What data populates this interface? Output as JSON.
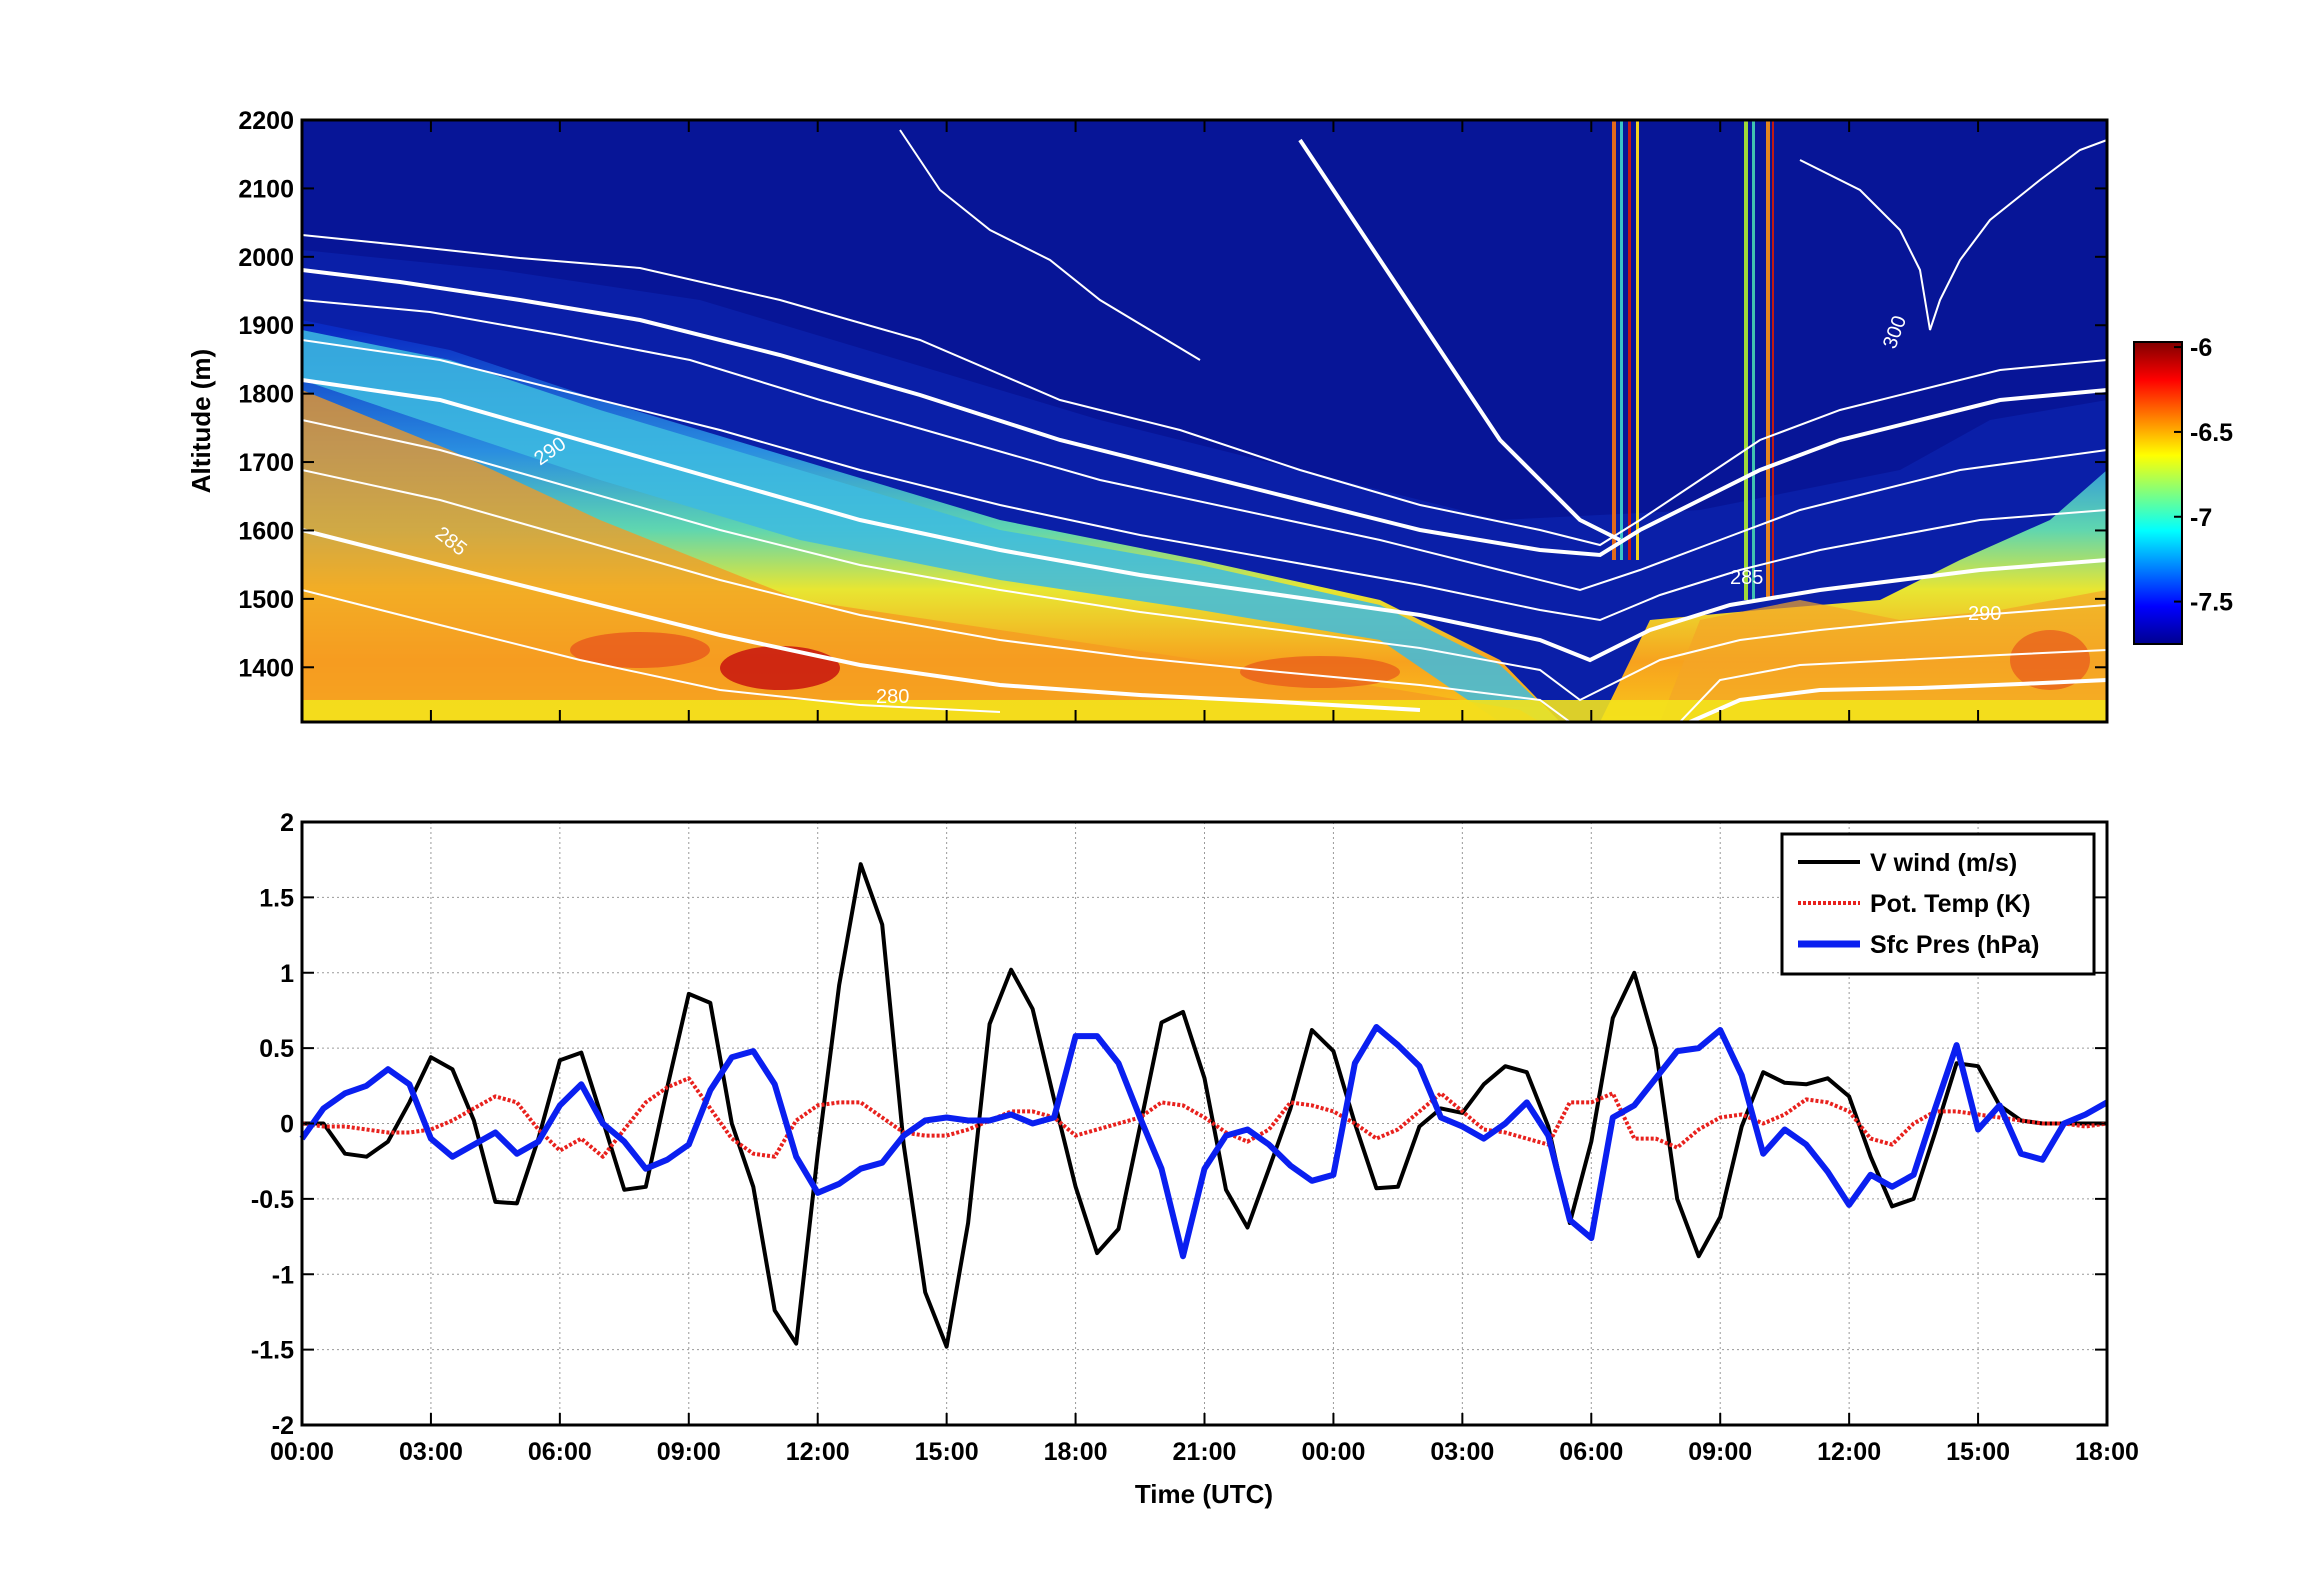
{
  "chart_data": [
    {
      "type": "heatmap",
      "title": "",
      "xlabel": "",
      "ylabel": "Altitude (m)",
      "ylim": [
        1320,
        2200
      ],
      "yticks": [
        1400,
        1500,
        1600,
        1700,
        1800,
        1900,
        2000,
        2100,
        2200
      ],
      "xticks_count": 15,
      "colorbar": {
        "ticks": [
          "-6",
          "-6.5",
          "-7",
          "-7.5"
        ],
        "range": [
          -7.75,
          -5.97
        ],
        "colormap": "jet"
      },
      "contour_labels": [
        "290",
        "285",
        "280",
        "300",
        "285",
        "290"
      ],
      "description_colors": {
        "low": "#00008f",
        "high": "#800000"
      }
    },
    {
      "type": "line",
      "xlabel": "Time (UTC)",
      "ylabel": "",
      "xticks": [
        "00:00",
        "03:00",
        "06:00",
        "09:00",
        "12:00",
        "15:00",
        "18:00",
        "21:00",
        "00:00",
        "03:00",
        "06:00",
        "09:00",
        "12:00",
        "15:00",
        "18:00"
      ],
      "xlim": [
        0,
        42
      ],
      "ylim": [
        -2,
        2
      ],
      "yticks": [
        "-2",
        "-1.5",
        "-1",
        "-0.5",
        "0",
        "0.5",
        "1",
        "1.5",
        "2"
      ],
      "grid": true,
      "legend_position": "top-right",
      "x_unit": "hours since first 00:00 tick",
      "series": [
        {
          "name": "V wind (m/s)",
          "color": "#000000",
          "x": [
            0,
            0.5,
            1,
            1.5,
            2,
            2.5,
            3,
            3.5,
            4,
            4.5,
            5,
            5.5,
            6,
            6.5,
            7,
            7.5,
            8,
            8.5,
            9,
            9.5,
            10,
            10.5,
            11,
            11.5,
            12,
            12.5,
            13,
            13.5,
            14,
            14.5,
            15,
            15.5,
            16,
            16.5,
            17,
            17.5,
            18,
            18.5,
            19,
            19.5,
            20,
            20.5,
            21,
            21.5,
            22,
            22.5,
            23,
            23.5,
            24,
            24.5,
            25,
            25.5,
            26,
            26.5,
            27,
            27.5,
            28,
            28.5,
            29,
            29.5,
            30,
            30.5,
            31,
            31.5,
            32,
            32.5,
            33,
            33.5,
            34,
            34.5,
            35,
            35.5,
            36,
            36.5,
            37,
            37.5,
            38,
            38.5,
            39,
            39.5,
            40,
            40.5,
            41,
            41.5,
            42
          ],
          "values": [
            0.0,
            0.0,
            -0.2,
            -0.22,
            -0.12,
            0.14,
            0.44,
            0.36,
            0.02,
            -0.52,
            -0.53,
            -0.1,
            0.42,
            0.47,
            0.02,
            -0.44,
            -0.42,
            0.24,
            0.86,
            0.8,
            0.0,
            -0.42,
            -1.24,
            -1.46,
            -0.2,
            0.92,
            1.72,
            1.32,
            -0.14,
            -1.12,
            -1.48,
            -0.66,
            0.66,
            1.02,
            0.76,
            0.16,
            -0.42,
            -0.86,
            -0.7,
            -0.02,
            0.67,
            0.74,
            0.3,
            -0.44,
            -0.69,
            -0.3,
            0.1,
            0.62,
            0.48,
            0.0,
            -0.43,
            -0.42,
            -0.02,
            0.1,
            0.07,
            0.26,
            0.38,
            0.34,
            -0.02,
            -0.66,
            -0.12,
            0.7,
            1.0,
            0.5,
            -0.5,
            -0.88,
            -0.62,
            -0.02,
            0.34,
            0.27,
            0.26,
            0.3,
            0.18,
            -0.22,
            -0.55,
            -0.5,
            -0.06,
            0.4,
            0.38,
            0.12,
            0.02,
            0.0,
            0.0,
            0.0,
            0.0
          ]
        },
        {
          "name": "Pot. Temp (K)",
          "color": "#e8211d",
          "x": [
            0,
            0.5,
            1,
            1.5,
            2,
            2.5,
            3,
            3.5,
            4,
            4.5,
            5,
            5.5,
            6,
            6.5,
            7,
            7.5,
            8,
            8.5,
            9,
            9.5,
            10,
            10.5,
            11,
            11.5,
            12,
            12.5,
            13,
            13.5,
            14,
            14.5,
            15,
            15.5,
            16,
            16.5,
            17,
            17.5,
            18,
            18.5,
            19,
            19.5,
            20,
            20.5,
            21,
            21.5,
            22,
            22.5,
            23,
            23.5,
            24,
            24.5,
            25,
            25.5,
            26,
            26.5,
            27,
            27.5,
            28,
            28.5,
            29,
            29.5,
            30,
            30.5,
            31,
            31.5,
            32,
            32.5,
            33,
            33.5,
            34,
            34.5,
            35,
            35.5,
            36,
            36.5,
            37,
            37.5,
            38,
            38.5,
            39,
            39.5,
            40,
            40.5,
            41,
            41.5,
            42
          ],
          "values": [
            0.0,
            -0.02,
            -0.02,
            -0.04,
            -0.06,
            -0.06,
            -0.04,
            0.02,
            0.1,
            0.18,
            0.14,
            -0.04,
            -0.18,
            -0.1,
            -0.22,
            -0.04,
            0.14,
            0.24,
            0.3,
            0.1,
            -0.1,
            -0.2,
            -0.22,
            0.02,
            0.12,
            0.14,
            0.14,
            0.04,
            -0.06,
            -0.08,
            -0.08,
            -0.04,
            0.02,
            0.08,
            0.08,
            0.04,
            -0.08,
            -0.04,
            0.0,
            0.04,
            0.14,
            0.12,
            0.04,
            -0.06,
            -0.12,
            -0.04,
            0.14,
            0.12,
            0.08,
            0.0,
            -0.1,
            -0.04,
            0.08,
            0.2,
            0.08,
            -0.04,
            -0.06,
            -0.1,
            -0.14,
            0.14,
            0.14,
            0.2,
            -0.1,
            -0.1,
            -0.16,
            -0.04,
            0.04,
            0.06,
            0.0,
            0.06,
            0.16,
            0.14,
            0.08,
            -0.1,
            -0.14,
            0.0,
            0.08,
            0.08,
            0.06,
            0.04,
            0.02,
            0.0,
            0.0,
            -0.02,
            0.0
          ]
        },
        {
          "name": "Sfc Pres (hPa)",
          "color": "#0a1ff0",
          "x": [
            0,
            0.5,
            1,
            1.5,
            2,
            2.5,
            3,
            3.5,
            4,
            4.5,
            5,
            5.5,
            6,
            6.5,
            7,
            7.5,
            8,
            8.5,
            9,
            9.5,
            10,
            10.5,
            11,
            11.5,
            12,
            12.5,
            13,
            13.5,
            14,
            14.5,
            15,
            15.5,
            16,
            16.5,
            17,
            17.5,
            18,
            18.5,
            19,
            19.5,
            20,
            20.5,
            21,
            21.5,
            22,
            22.5,
            23,
            23.5,
            24,
            24.5,
            25,
            25.5,
            26,
            26.5,
            27,
            27.5,
            28,
            28.5,
            29,
            29.5,
            30,
            30.5,
            31,
            31.5,
            32,
            32.5,
            33,
            33.5,
            34,
            34.5,
            35,
            35.5,
            36,
            36.5,
            37,
            37.5,
            38,
            38.5,
            39,
            39.5,
            40,
            40.5,
            41,
            41.5,
            42
          ],
          "values": [
            -0.1,
            0.1,
            0.2,
            0.25,
            0.36,
            0.26,
            -0.1,
            -0.22,
            -0.14,
            -0.06,
            -0.2,
            -0.12,
            0.12,
            0.26,
            0.0,
            -0.12,
            -0.3,
            -0.24,
            -0.14,
            0.22,
            0.44,
            0.48,
            0.26,
            -0.22,
            -0.46,
            -0.4,
            -0.3,
            -0.26,
            -0.08,
            0.02,
            0.04,
            0.02,
            0.02,
            0.06,
            0.0,
            0.04,
            0.58,
            0.58,
            0.4,
            0.04,
            -0.3,
            -0.88,
            -0.3,
            -0.08,
            -0.04,
            -0.14,
            -0.28,
            -0.38,
            -0.34,
            0.4,
            0.64,
            0.52,
            0.38,
            0.04,
            -0.02,
            -0.1,
            0.0,
            0.14,
            -0.08,
            -0.64,
            -0.76,
            0.04,
            0.12,
            0.3,
            0.48,
            0.5,
            0.62,
            0.32,
            -0.2,
            -0.04,
            -0.14,
            -0.32,
            -0.54,
            -0.34,
            -0.42,
            -0.34,
            0.1,
            0.52,
            -0.04,
            0.12,
            -0.2,
            -0.24,
            0.0,
            0.06,
            0.14
          ]
        }
      ]
    }
  ]
}
